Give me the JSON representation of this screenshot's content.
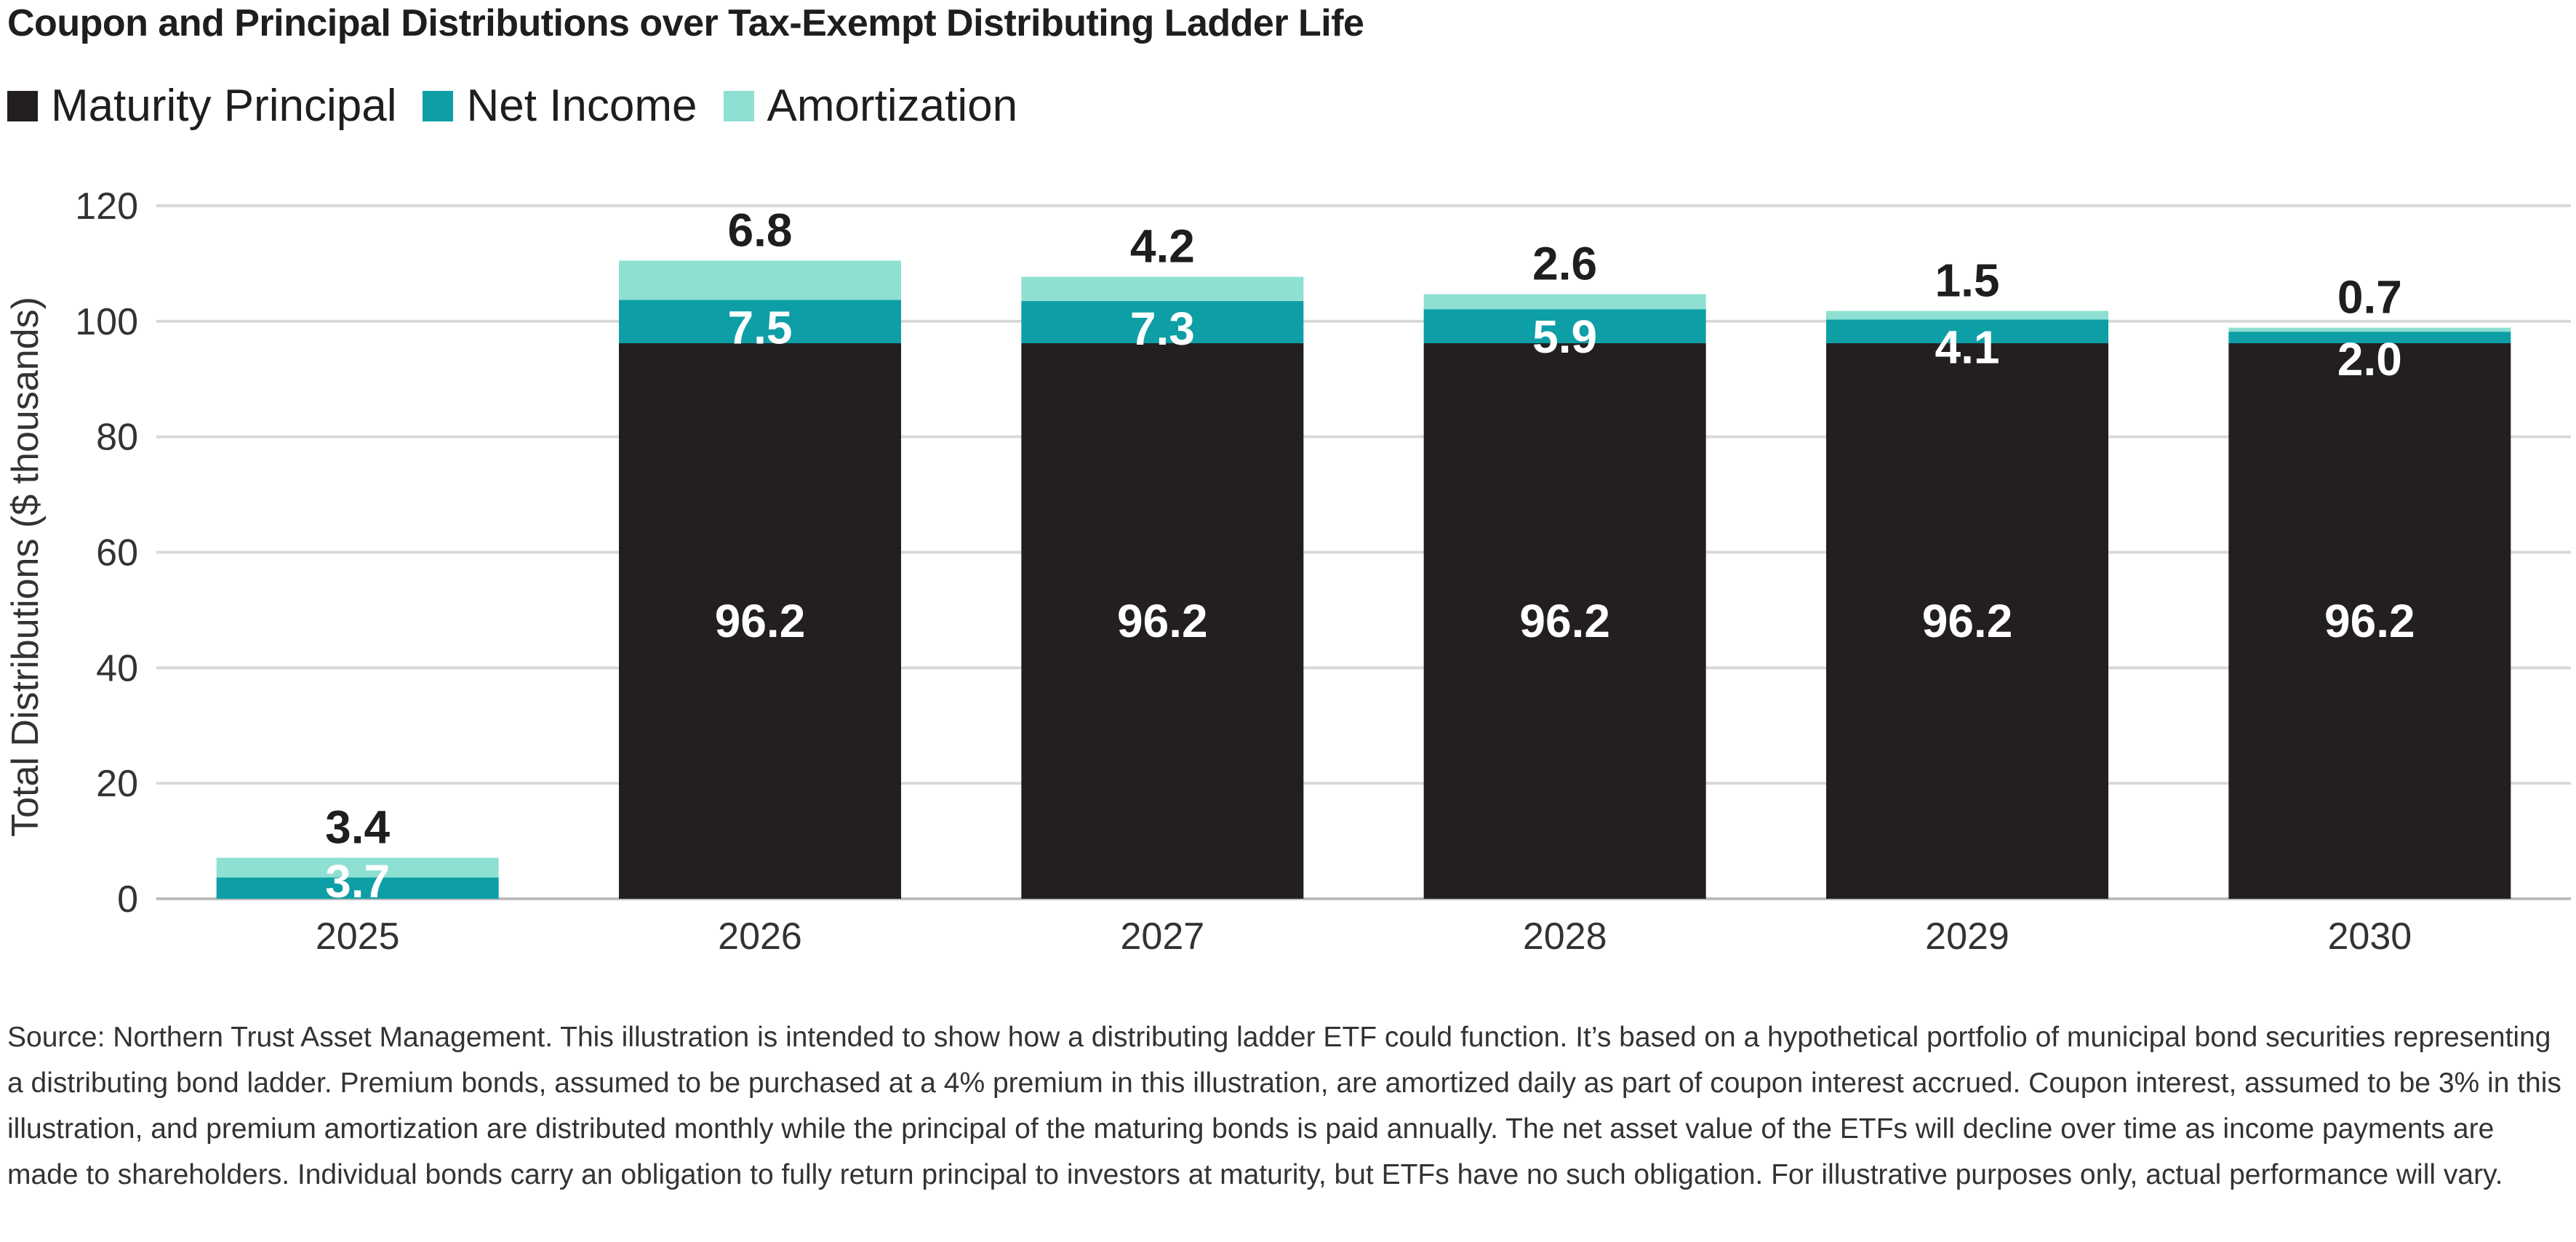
{
  "title": "Coupon and Principal Distributions over Tax-Exempt Distributing Ladder Life",
  "legend": [
    {
      "label": "Maturity Principal",
      "color": "#231f20"
    },
    {
      "label": "Net Income",
      "color": "#0e9fa6"
    },
    {
      "label": "Amortization",
      "color": "#8ee0d2"
    }
  ],
  "chart_data": {
    "type": "bar",
    "stacked": true,
    "title": "Coupon and Principal Distributions over Tax-Exempt Distributing Ladder Life",
    "xlabel": "",
    "ylabel": "Total Distributions ($ thousands)",
    "ylim": [
      0,
      120
    ],
    "yticks": [
      0,
      20,
      40,
      60,
      80,
      100,
      120
    ],
    "grid": true,
    "legend_position": "top-left",
    "categories": [
      "2025",
      "2026",
      "2027",
      "2028",
      "2029",
      "2030"
    ],
    "series": [
      {
        "name": "Maturity Principal",
        "color": "#231f20",
        "values": [
          0,
          96.2,
          96.2,
          96.2,
          96.2,
          96.2
        ],
        "labels": [
          "",
          "96.2",
          "96.2",
          "96.2",
          "96.2",
          "96.2"
        ]
      },
      {
        "name": "Net Income",
        "color": "#0e9fa6",
        "values": [
          3.7,
          7.5,
          7.3,
          5.9,
          4.1,
          2.0
        ],
        "labels": [
          "3.7",
          "7.5",
          "7.3",
          "5.9",
          "4.1",
          "2.0"
        ]
      },
      {
        "name": "Amortization",
        "color": "#8ee0d2",
        "values": [
          3.4,
          6.8,
          4.2,
          2.6,
          1.5,
          0.7
        ],
        "labels": [
          "3.4",
          "6.8",
          "4.2",
          "2.6",
          "1.5",
          "0.7"
        ]
      }
    ]
  },
  "footnote": "Source: Northern Trust Asset Management. This illustration is intended to show how a distributing ladder ETF could function. It’s based on a hypothetical portfolio of municipal bond securities representing a distributing bond ladder. Premium bonds, assumed to be purchased at a 4% premium in this illustration, are amortized daily as part of coupon interest accrued. Coupon interest, assumed to be 3% in this illustration, and premium amortization are distributed monthly while the principal of the maturing bonds is paid annually. The net asset value of the ETFs will decline over time as income payments are made to shareholders. Individual bonds carry an obligation to fully return principal to investors at maturity, but ETFs have no such obligation. For illustrative purposes only, actual performance will vary."
}
